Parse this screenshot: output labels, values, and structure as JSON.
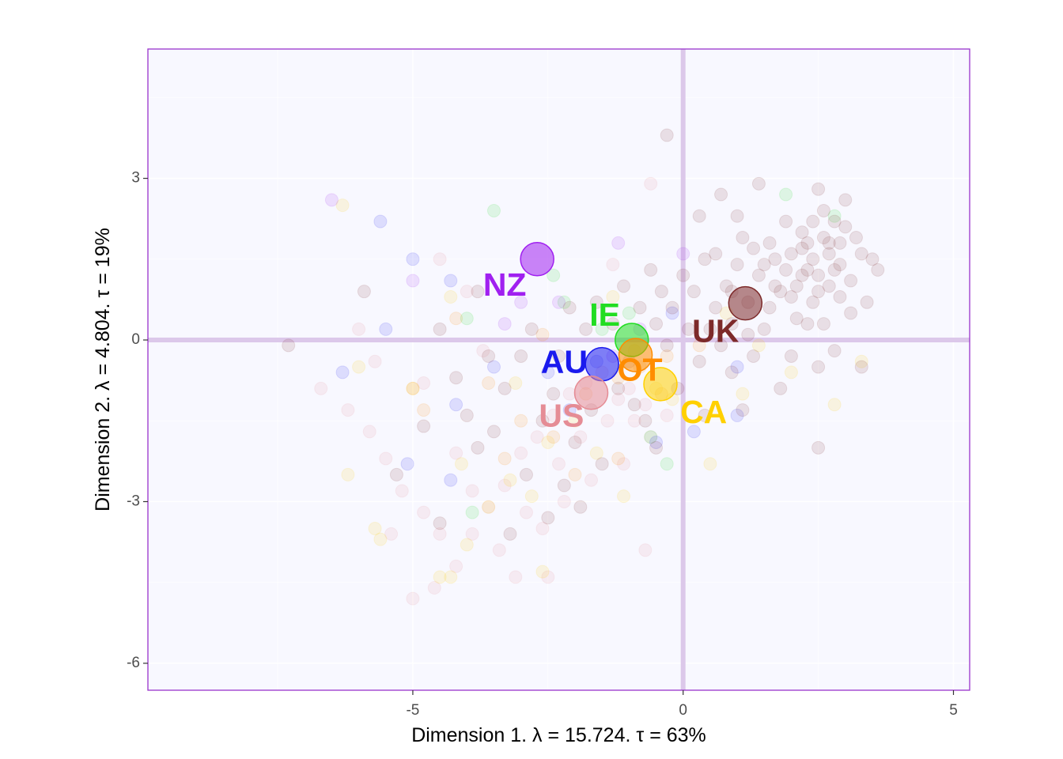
{
  "chart_data": {
    "type": "scatter",
    "xlabel": "Dimension 1.   λ = 15.724.  τ = 63%",
    "ylabel": "Dimension 2.   λ = 4.804.  τ = 19%",
    "x_ticks": [
      -5,
      0,
      5
    ],
    "y_ticks": [
      3,
      0,
      -3,
      -6
    ],
    "x_tick_labels": [
      "-5",
      "0",
      "5"
    ],
    "y_tick_labels": [
      "3",
      "0",
      "-3",
      "-6"
    ],
    "xlim": [
      -9.9,
      5.3
    ],
    "ylim": [
      -6.5,
      5.4
    ],
    "grid": true,
    "reference_lines": {
      "x": 0,
      "y": 0
    },
    "colors": {
      "panel_background": "#f8f8ff",
      "panel_border": "#9932cc",
      "grid": "#ffffff",
      "reference_line": "#dcc8ea",
      "tick_text": "#4d4d4d"
    },
    "groups": [
      {
        "label": "UK",
        "color": "#7d2a2a",
        "centroid": [
          1.15,
          0.68
        ],
        "label_pos": [
          0.6,
          0.12
        ]
      },
      {
        "label": "NZ",
        "color": "#a020f0",
        "centroid": [
          -2.7,
          1.5
        ],
        "label_pos": [
          -3.3,
          0.98
        ]
      },
      {
        "label": "IE",
        "color": "#22dd22",
        "centroid": [
          -0.95,
          0.0
        ],
        "label_pos": [
          -1.45,
          0.42
        ]
      },
      {
        "label": "AU",
        "color": "#1a1aee",
        "centroid": [
          -1.5,
          -0.45
        ],
        "label_pos": [
          -2.2,
          -0.45
        ]
      },
      {
        "label": "OT",
        "color": "#ff8c00",
        "centroid": [
          -0.88,
          -0.28
        ],
        "label_pos": [
          -0.8,
          -0.6
        ]
      },
      {
        "label": "US",
        "color": "#e58c95",
        "centroid": [
          -1.7,
          -0.98
        ],
        "label_pos": [
          -2.25,
          -1.45
        ]
      },
      {
        "label": "CA",
        "color": "#ffd000",
        "centroid": [
          -0.42,
          -0.82
        ],
        "label_pos": [
          0.38,
          -1.38
        ]
      }
    ],
    "individual_points": {
      "UK": [
        [
          2.9,
          1.8
        ],
        [
          2.6,
          1.9
        ],
        [
          2.2,
          1.2
        ],
        [
          2.5,
          0.9
        ],
        [
          2.8,
          1.3
        ],
        [
          3.0,
          2.1
        ],
        [
          2.7,
          1.6
        ],
        [
          2.4,
          1.5
        ],
        [
          2.3,
          1.8
        ],
        [
          2.1,
          1.0
        ],
        [
          1.9,
          1.3
        ],
        [
          3.1,
          1.1
        ],
        [
          2.9,
          0.8
        ],
        [
          3.3,
          1.6
        ],
        [
          3.5,
          1.5
        ],
        [
          2.6,
          2.4
        ],
        [
          2.2,
          2.0
        ],
        [
          2.0,
          1.6
        ],
        [
          1.8,
          0.9
        ],
        [
          1.7,
          1.5
        ],
        [
          2.5,
          1.2
        ],
        [
          2.8,
          2.2
        ],
        [
          3.2,
          1.9
        ],
        [
          2.4,
          0.7
        ],
        [
          1.6,
          1.8
        ],
        [
          1.4,
          1.2
        ],
        [
          1.2,
          0.7
        ],
        [
          1.0,
          1.4
        ],
        [
          0.8,
          1.0
        ],
        [
          0.6,
          0.6
        ],
        [
          0.9,
          0.3
        ],
        [
          0.4,
          1.5
        ],
        [
          0.2,
          0.9
        ],
        [
          0.5,
          0.2
        ],
        [
          1.5,
          0.2
        ],
        [
          2.0,
          -0.3
        ],
        [
          2.5,
          -0.5
        ],
        [
          2.8,
          -0.2
        ],
        [
          3.3,
          -0.5
        ],
        [
          1.8,
          -0.9
        ],
        [
          1.3,
          -0.3
        ],
        [
          0.9,
          -0.6
        ],
        [
          0.3,
          -0.4
        ],
        [
          0.1,
          0.2
        ],
        [
          -0.2,
          0.6
        ],
        [
          -0.4,
          0.9
        ],
        [
          -0.5,
          0.3
        ],
        [
          0.0,
          1.2
        ],
        [
          0.3,
          2.3
        ],
        [
          1.0,
          2.3
        ],
        [
          1.4,
          2.9
        ],
        [
          0.7,
          2.7
        ],
        [
          2.5,
          2.8
        ],
        [
          3.0,
          2.6
        ],
        [
          2.3,
          1.3
        ],
        [
          2.7,
          1.0
        ],
        [
          1.9,
          2.2
        ],
        [
          3.6,
          1.3
        ],
        [
          2.1,
          0.4
        ],
        [
          1.6,
          0.6
        ],
        [
          2.6,
          0.3
        ],
        [
          3.1,
          0.5
        ],
        [
          -0.3,
          3.8
        ],
        [
          2.5,
          -2.0
        ],
        [
          1.1,
          -1.3
        ],
        [
          -3.8,
          0.9
        ],
        [
          -5.9,
          0.9
        ],
        [
          -7.3,
          -0.1
        ],
        [
          -4.2,
          -0.7
        ],
        [
          -3.5,
          -1.7
        ],
        [
          -3.2,
          -3.6
        ],
        [
          -2.6,
          -1.5
        ],
        [
          -2.2,
          -2.7
        ],
        [
          -1.9,
          -3.1
        ],
        [
          -1.5,
          -2.3
        ],
        [
          -4.0,
          -1.4
        ],
        [
          -3.0,
          -0.3
        ],
        [
          -2.8,
          0.2
        ],
        [
          -2.4,
          -1.0
        ],
        [
          -1.2,
          -0.9
        ],
        [
          -0.7,
          -1.5
        ],
        [
          -0.5,
          -2.0
        ],
        [
          -1.8,
          0.2
        ],
        [
          -1.3,
          0.3
        ],
        [
          -0.8,
          0.6
        ],
        [
          -0.1,
          -0.9
        ],
        [
          0.4,
          -1.4
        ],
        [
          2.2,
          1.7
        ],
        [
          1.3,
          1.7
        ],
        [
          1.7,
          1.0
        ],
        [
          2.9,
          1.4
        ],
        [
          2.4,
          2.2
        ],
        [
          1.1,
          1.9
        ],
        [
          0.6,
          1.6
        ],
        [
          0.9,
          0.9
        ],
        [
          1.5,
          1.4
        ],
        [
          2.0,
          0.8
        ],
        [
          2.7,
          1.8
        ],
        [
          2.3,
          0.3
        ],
        [
          3.4,
          0.7
        ],
        [
          1.2,
          0.1
        ],
        [
          0.7,
          -0.1
        ],
        [
          -0.6,
          1.3
        ],
        [
          -1.1,
          1.0
        ],
        [
          -1.6,
          0.7
        ],
        [
          -2.1,
          0.6
        ],
        [
          -3.3,
          -0.9
        ],
        [
          -4.8,
          -1.6
        ],
        [
          -5.3,
          -2.5
        ],
        [
          -4.5,
          -3.4
        ],
        [
          -3.8,
          -2.0
        ],
        [
          -2.9,
          -2.5
        ],
        [
          -2.5,
          -3.3
        ],
        [
          -2.0,
          -1.9
        ],
        [
          -1.7,
          -1.3
        ],
        [
          -1.0,
          -0.4
        ],
        [
          -0.3,
          -0.1
        ],
        [
          -0.9,
          -1.2
        ],
        [
          -2.3,
          -0.3
        ],
        [
          -3.6,
          -0.3
        ],
        [
          -4.5,
          0.2
        ]
      ],
      "NZ": [
        [
          -6.5,
          2.6
        ],
        [
          -5.0,
          1.1
        ],
        [
          -3.3,
          0.3
        ],
        [
          -3.0,
          0.7
        ],
        [
          -2.3,
          0.7
        ],
        [
          -1.2,
          1.8
        ],
        [
          -0.8,
          0.2
        ],
        [
          0.0,
          1.6
        ],
        [
          -1.3,
          -0.3
        ]
      ],
      "IE": [
        [
          -3.5,
          2.4
        ],
        [
          -2.4,
          1.2
        ],
        [
          -2.2,
          0.7
        ],
        [
          -1.5,
          0.2
        ],
        [
          -1.0,
          0.5
        ],
        [
          -0.6,
          -1.8
        ],
        [
          -0.3,
          -2.3
        ],
        [
          -3.9,
          -3.2
        ],
        [
          1.9,
          2.7
        ],
        [
          2.8,
          2.3
        ],
        [
          -4.0,
          0.4
        ]
      ],
      "AU": [
        [
          -5.6,
          2.2
        ],
        [
          -6.3,
          -0.6
        ],
        [
          -5.5,
          0.2
        ],
        [
          -5.0,
          1.5
        ],
        [
          -4.3,
          1.1
        ],
        [
          -3.5,
          -0.5
        ],
        [
          -4.2,
          -1.2
        ],
        [
          -5.1,
          -2.3
        ],
        [
          -4.3,
          -2.6
        ],
        [
          -2.5,
          -0.6
        ],
        [
          -2.1,
          -1.3
        ],
        [
          -1.6,
          -0.4
        ],
        [
          -0.5,
          -1.9
        ],
        [
          0.2,
          -1.7
        ],
        [
          1.0,
          -1.4
        ],
        [
          1.0,
          -0.5
        ],
        [
          -0.2,
          0.5
        ]
      ],
      "OT": [
        [
          -4.2,
          0.4
        ],
        [
          -3.6,
          -0.8
        ],
        [
          -3.0,
          -1.5
        ],
        [
          -2.4,
          -1.8
        ],
        [
          -1.8,
          -1.0
        ],
        [
          -1.2,
          -0.7
        ],
        [
          -0.8,
          -0.5
        ],
        [
          -0.3,
          -0.3
        ],
        [
          0.3,
          -0.1
        ],
        [
          -5.0,
          -0.9
        ],
        [
          -4.8,
          -1.3
        ],
        [
          -2.0,
          -2.5
        ],
        [
          -1.2,
          -2.2
        ],
        [
          -0.4,
          -1.0
        ],
        [
          -3.3,
          -2.2
        ],
        [
          -2.6,
          0.1
        ]
      ],
      "US": [
        [
          -6.7,
          -0.9
        ],
        [
          -6.2,
          -1.3
        ],
        [
          -5.8,
          -1.7
        ],
        [
          -5.5,
          -2.2
        ],
        [
          -5.2,
          -2.8
        ],
        [
          -4.8,
          -3.2
        ],
        [
          -4.5,
          -3.6
        ],
        [
          -4.2,
          -4.2
        ],
        [
          -3.9,
          -3.6
        ],
        [
          -3.6,
          -3.1
        ],
        [
          -3.3,
          -2.7
        ],
        [
          -3.0,
          -2.1
        ],
        [
          -2.7,
          -1.8
        ],
        [
          -2.4,
          -1.4
        ],
        [
          -2.1,
          -1.0
        ],
        [
          -1.8,
          -0.8
        ],
        [
          -1.5,
          -0.6
        ],
        [
          -1.2,
          -1.1
        ],
        [
          -0.9,
          -1.5
        ],
        [
          -0.6,
          -1.8
        ],
        [
          -5.0,
          -4.8
        ],
        [
          -4.6,
          -4.6
        ],
        [
          -3.1,
          -4.4
        ],
        [
          -2.6,
          -3.5
        ],
        [
          -2.2,
          -3.0
        ],
        [
          -1.7,
          -2.6
        ],
        [
          -1.1,
          -2.3
        ],
        [
          -0.7,
          -1.2
        ],
        [
          -6.0,
          0.2
        ],
        [
          -5.7,
          -0.4
        ],
        [
          -4.5,
          1.5
        ],
        [
          -4.0,
          0.9
        ],
        [
          -3.7,
          -0.2
        ],
        [
          -1.3,
          1.4
        ],
        [
          -0.6,
          2.9
        ],
        [
          -0.7,
          -3.9
        ],
        [
          -4.8,
          -0.8
        ],
        [
          -4.2,
          -2.1
        ],
        [
          -3.9,
          -2.8
        ],
        [
          -2.9,
          -3.2
        ],
        [
          -2.3,
          -2.3
        ],
        [
          -1.9,
          -1.8
        ],
        [
          -1.4,
          -1.5
        ],
        [
          -1.0,
          -0.9
        ],
        [
          -0.3,
          -1.4
        ],
        [
          -5.4,
          -3.6
        ],
        [
          -3.4,
          -3.9
        ],
        [
          -2.5,
          -4.4
        ]
      ],
      "CA": [
        [
          -6.3,
          2.5
        ],
        [
          -6.0,
          -0.5
        ],
        [
          -5.7,
          -3.5
        ],
        [
          -5.6,
          -3.7
        ],
        [
          -4.5,
          -4.4
        ],
        [
          -4.3,
          -4.4
        ],
        [
          -4.0,
          -3.8
        ],
        [
          -3.6,
          -3.1
        ],
        [
          -3.2,
          -2.6
        ],
        [
          -2.8,
          -2.9
        ],
        [
          -2.5,
          -1.9
        ],
        [
          -2.0,
          -1.5
        ],
        [
          -1.6,
          -2.1
        ],
        [
          -1.1,
          -2.9
        ],
        [
          -0.9,
          -0.2
        ],
        [
          -0.5,
          -0.9
        ],
        [
          -0.2,
          -1.1
        ],
        [
          0.5,
          -2.3
        ],
        [
          1.1,
          -1.0
        ],
        [
          2.8,
          -1.2
        ],
        [
          3.3,
          -0.4
        ],
        [
          -4.3,
          0.8
        ],
        [
          -3.1,
          -0.8
        ],
        [
          -2.6,
          -4.3
        ],
        [
          -5.0,
          -0.9
        ],
        [
          -4.1,
          -2.3
        ],
        [
          -1.3,
          0.8
        ],
        [
          0.8,
          0.5
        ],
        [
          1.4,
          -0.1
        ],
        [
          2.0,
          -0.6
        ],
        [
          -6.2,
          -2.5
        ]
      ]
    }
  }
}
